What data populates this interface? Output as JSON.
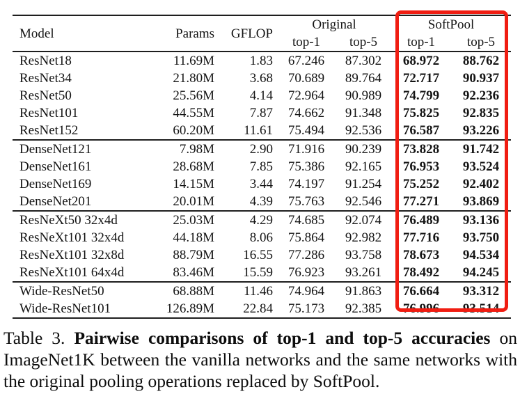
{
  "colors": {
    "background": "#ffffff",
    "text": "#141414",
    "rule": "#1e1e1e",
    "highlight_box": "#f01d12"
  },
  "table": {
    "headers": {
      "model": "Model",
      "params": "Params",
      "gflop": "GFLOP",
      "original": "Original",
      "softpool": "SoftPool",
      "top1": "top-1",
      "top5": "top-5"
    },
    "groups": [
      {
        "rows": [
          {
            "model": "ResNet18",
            "params": "11.69M",
            "gflop": "1.83",
            "original_top1": "67.246",
            "original_top5": "87.302",
            "softpool_top1": "68.972",
            "softpool_top5": "88.762"
          },
          {
            "model": "ResNet34",
            "params": "21.80M",
            "gflop": "3.68",
            "original_top1": "70.689",
            "original_top5": "89.764",
            "softpool_top1": "72.717",
            "softpool_top5": "90.937"
          },
          {
            "model": "ResNet50",
            "params": "25.56M",
            "gflop": "4.14",
            "original_top1": "72.964",
            "original_top5": "90.989",
            "softpool_top1": "74.799",
            "softpool_top5": "92.236"
          },
          {
            "model": "ResNet101",
            "params": "44.55M",
            "gflop": "7.87",
            "original_top1": "74.662",
            "original_top5": "91.348",
            "softpool_top1": "75.825",
            "softpool_top5": "92.835"
          },
          {
            "model": "ResNet152",
            "params": "60.20M",
            "gflop": "11.61",
            "original_top1": "75.494",
            "original_top5": "92.536",
            "softpool_top1": "76.587",
            "softpool_top5": "93.226"
          }
        ]
      },
      {
        "rows": [
          {
            "model": "DenseNet121",
            "params": "7.98M",
            "gflop": "2.90",
            "original_top1": "71.916",
            "original_top5": "90.239",
            "softpool_top1": "73.828",
            "softpool_top5": "91.742"
          },
          {
            "model": "DenseNet161",
            "params": "28.68M",
            "gflop": "7.85",
            "original_top1": "75.386",
            "original_top5": "92.165",
            "softpool_top1": "76.953",
            "softpool_top5": "93.524"
          },
          {
            "model": "DenseNet169",
            "params": "14.15M",
            "gflop": "3.44",
            "original_top1": "74.197",
            "original_top5": "91.254",
            "softpool_top1": "75.252",
            "softpool_top5": "92.402"
          },
          {
            "model": "DenseNet201",
            "params": "20.01M",
            "gflop": "4.39",
            "original_top1": "75.763",
            "original_top5": "92.546",
            "softpool_top1": "77.271",
            "softpool_top5": "93.869"
          }
        ]
      },
      {
        "rows": [
          {
            "model": "ResNeXt50 32x4d",
            "params": "25.03M",
            "gflop": "4.29",
            "original_top1": "74.685",
            "original_top5": "92.074",
            "softpool_top1": "76.489",
            "softpool_top5": "93.136"
          },
          {
            "model": "ResNeXt101 32x4d",
            "params": "44.18M",
            "gflop": "8.06",
            "original_top1": "75.864",
            "original_top5": "92.982",
            "softpool_top1": "77.716",
            "softpool_top5": "93.750"
          },
          {
            "model": "ResNeXt101 32x8d",
            "params": "88.79M",
            "gflop": "16.55",
            "original_top1": "77.286",
            "original_top5": "93.758",
            "softpool_top1": "78.673",
            "softpool_top5": "94.534"
          },
          {
            "model": "ResNeXt101 64x4d",
            "params": "83.46M",
            "gflop": "15.59",
            "original_top1": "76.923",
            "original_top5": "93.261",
            "softpool_top1": "78.492",
            "softpool_top5": "94.245"
          }
        ]
      },
      {
        "rows": [
          {
            "model": "Wide-ResNet50",
            "params": "68.88M",
            "gflop": "11.46",
            "original_top1": "74.964",
            "original_top5": "91.863",
            "softpool_top1": "76.664",
            "softpool_top5": "93.312"
          },
          {
            "model": "Wide-ResNet101",
            "params": "126.89M",
            "gflop": "22.84",
            "original_top1": "75.173",
            "original_top5": "92.385",
            "softpool_top1": "76.996",
            "softpool_top5": "93.514"
          }
        ]
      }
    ]
  },
  "caption": {
    "prefix": "Table 3. ",
    "bold": "Pairwise comparisons of top-1 and top-5 accuracies",
    "suffix": " on ImageNet1K between the vanilla networks and the same networks with the original pooling operations replaced by SoftPool."
  }
}
